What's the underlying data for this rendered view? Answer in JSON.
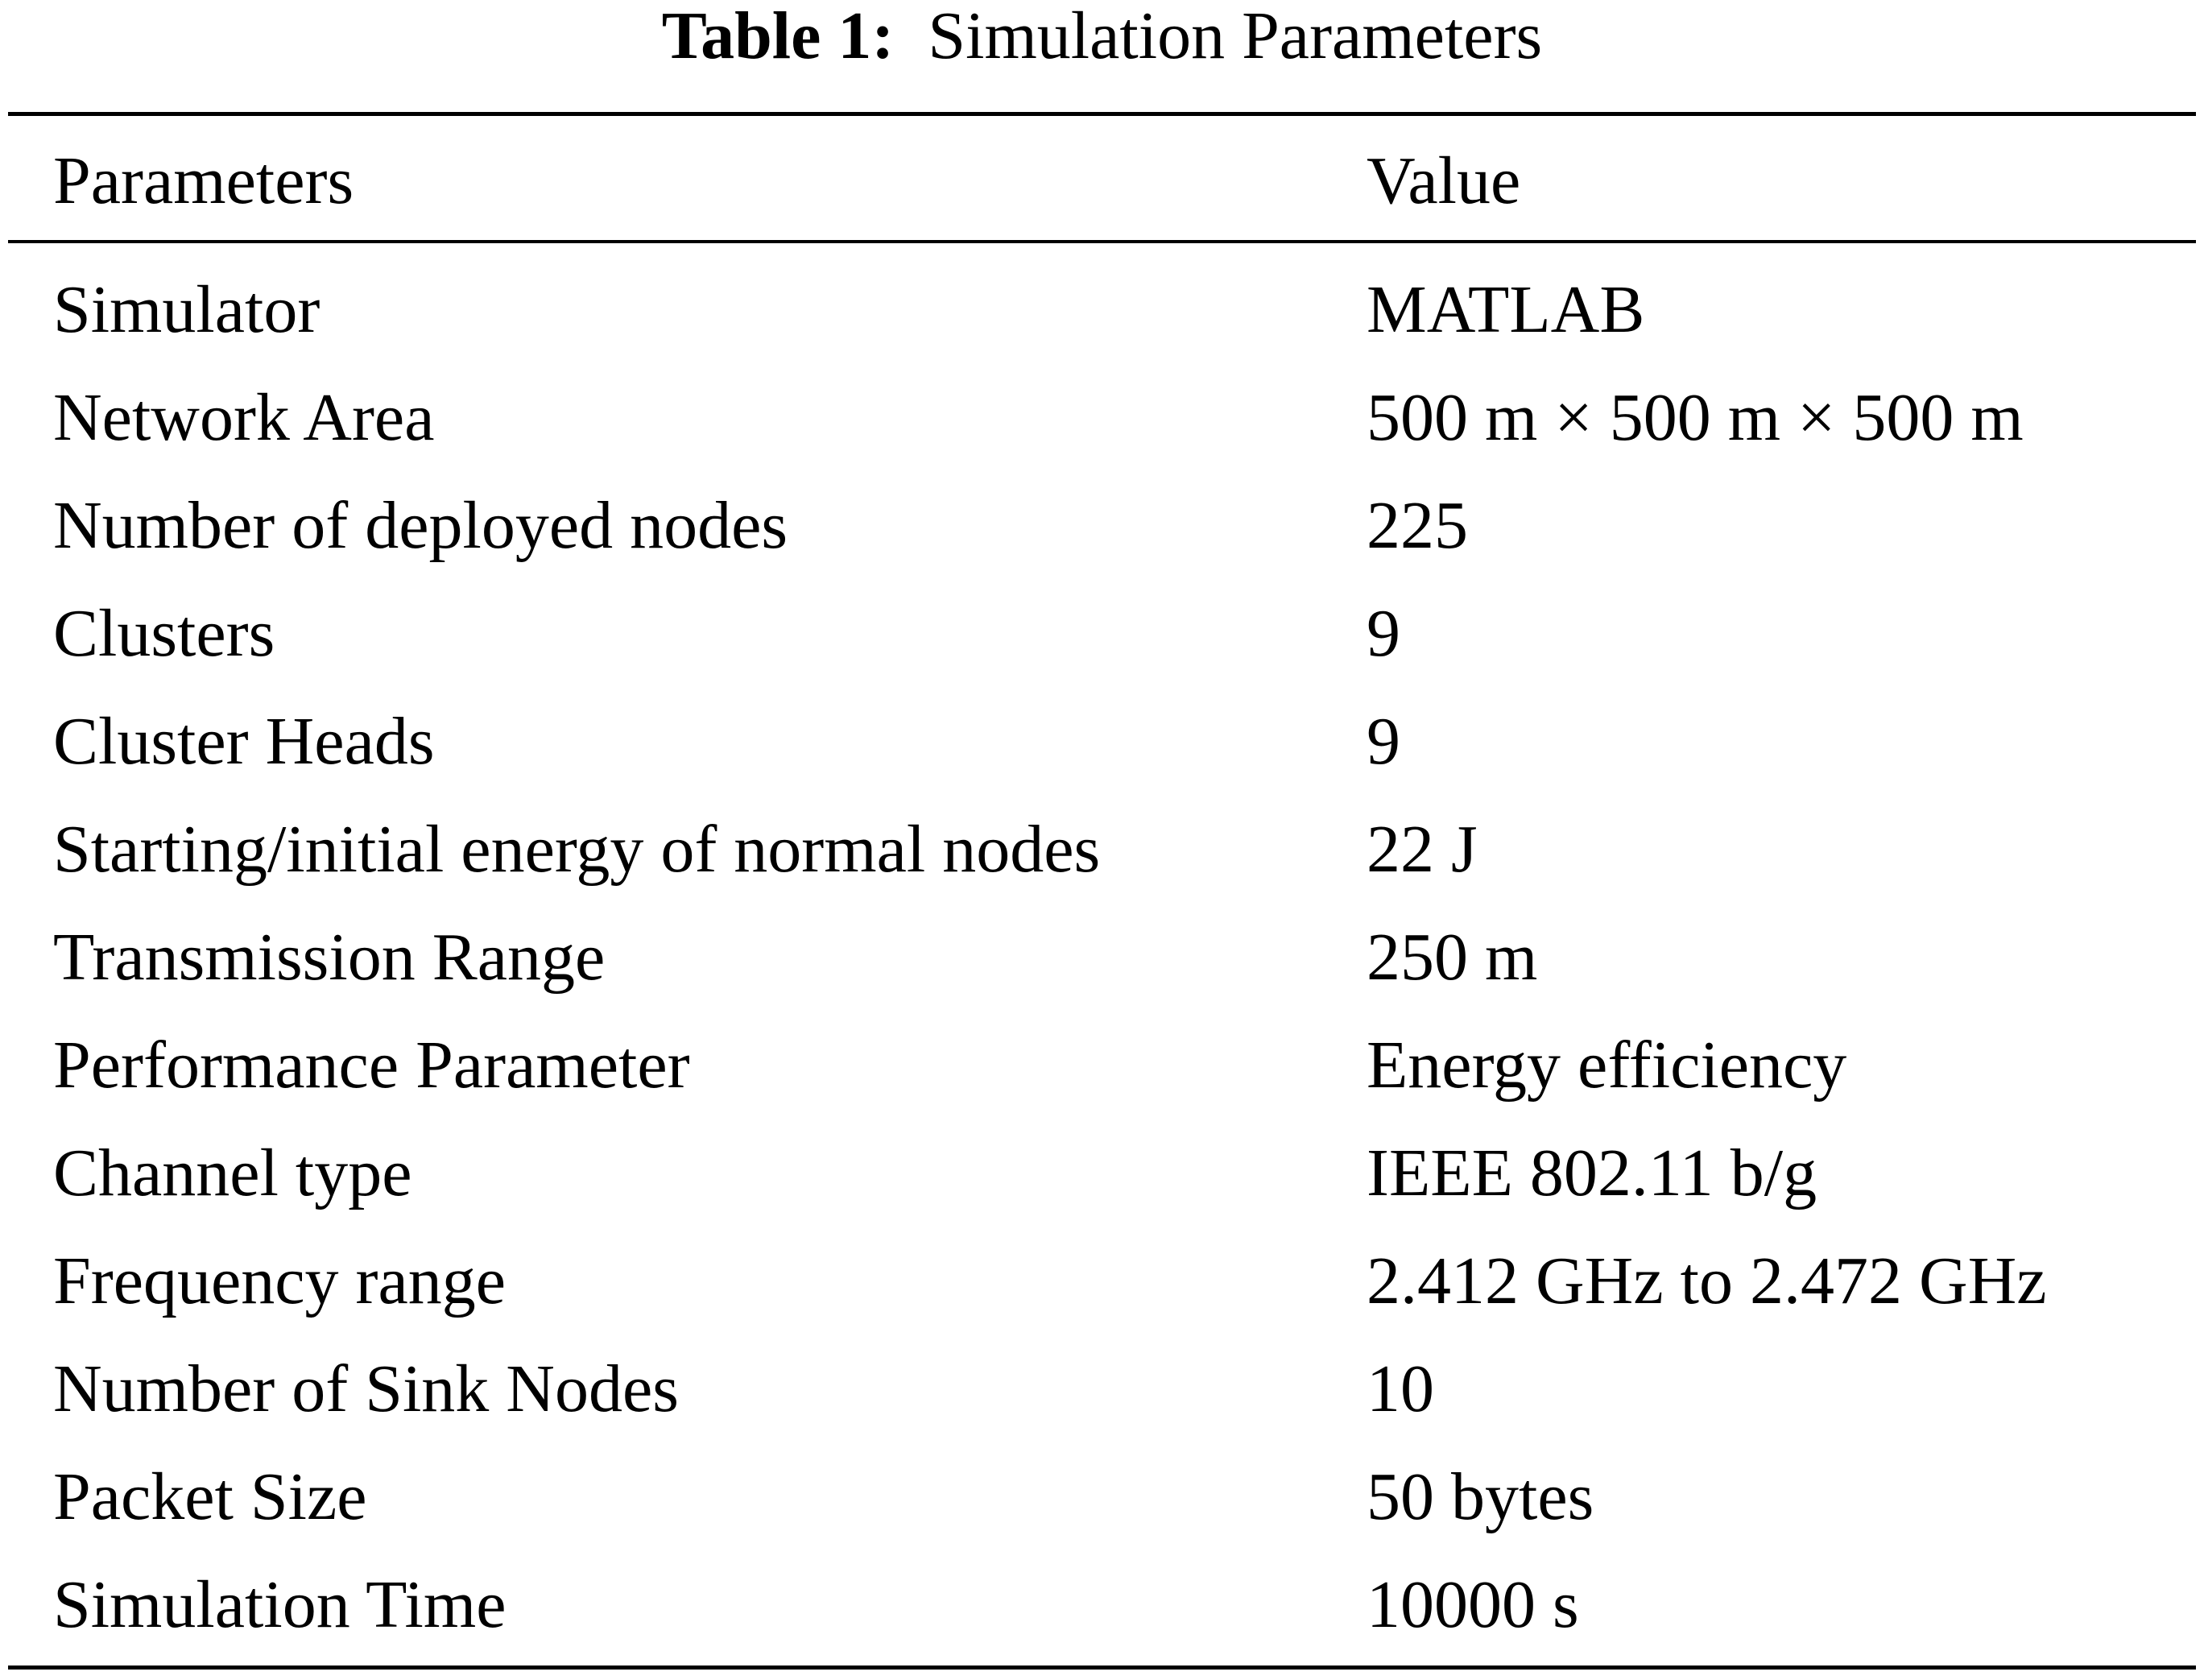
{
  "caption": {
    "label": "Table 1:",
    "title": "Simulation Parameters"
  },
  "table": {
    "headers": [
      "Parameters",
      "Value"
    ],
    "rows": [
      [
        "Simulator",
        "MATLAB"
      ],
      [
        "Network Area",
        "500 m × 500 m × 500 m"
      ],
      [
        "Number of deployed nodes",
        "225"
      ],
      [
        "Clusters",
        "9"
      ],
      [
        "Cluster Heads",
        "9"
      ],
      [
        "Starting/initial energy of normal nodes",
        "22 J"
      ],
      [
        "Transmission Range",
        "250 m"
      ],
      [
        "Performance Parameter",
        "Energy efficiency"
      ],
      [
        "Channel type",
        "IEEE 802.11 b/g"
      ],
      [
        "Frequency range",
        "2.412 GHz to 2.472 GHz"
      ],
      [
        "Number of Sink Nodes",
        "10"
      ],
      [
        "Packet Size",
        "50 bytes"
      ],
      [
        "Simulation Time",
        "10000 s"
      ]
    ]
  }
}
